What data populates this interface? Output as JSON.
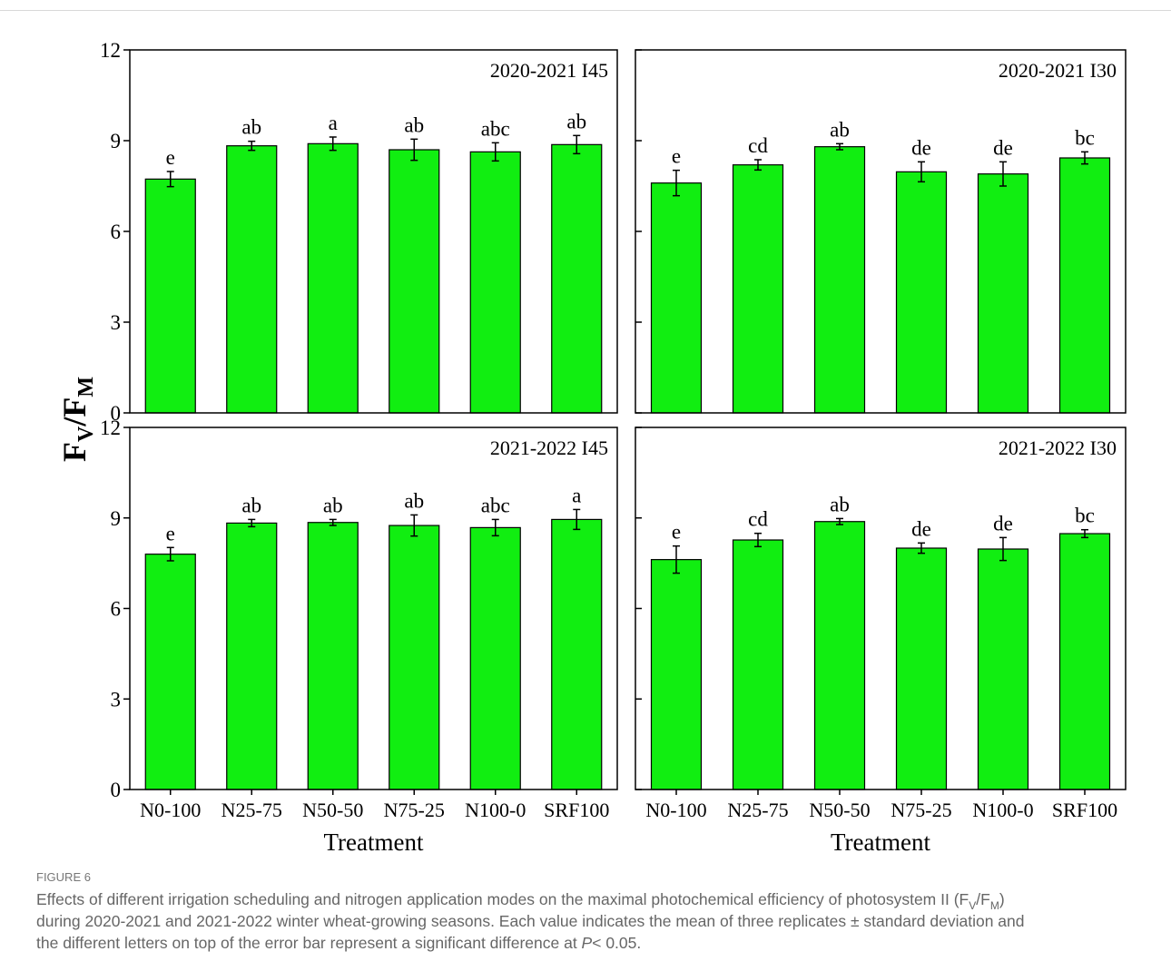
{
  "y_label": [
    "F",
    "V",
    "/F",
    "M"
  ],
  "chart_data": [
    {
      "type": "bar",
      "title": "2020-2021 I45",
      "categories": [
        null,
        null,
        null,
        null,
        null,
        null
      ],
      "values": [
        7.73,
        8.83,
        8.9,
        8.7,
        8.63,
        8.87
      ],
      "errors": [
        0.25,
        0.15,
        0.22,
        0.35,
        0.3,
        0.3
      ],
      "letters": [
        "e",
        "ab",
        "a",
        "ab",
        "abc",
        "ab"
      ],
      "color": "#11ee11",
      "ylim": [
        0,
        12
      ],
      "yticks": [
        0,
        3,
        6,
        9,
        12
      ]
    },
    {
      "type": "bar",
      "title": "2020-2021 I30",
      "categories": [
        null,
        null,
        null,
        null,
        null,
        null
      ],
      "values": [
        7.6,
        8.2,
        8.8,
        7.97,
        7.9,
        8.43
      ],
      "errors": [
        0.42,
        0.17,
        0.1,
        0.33,
        0.4,
        0.2
      ],
      "letters": [
        "e",
        "cd",
        "ab",
        "de",
        "de",
        "bc"
      ],
      "color": "#11ee11",
      "ylim": [
        0,
        12
      ]
    },
    {
      "type": "bar",
      "title": "2021-2022 I45",
      "categories": [
        "N0-100",
        "N25-75",
        "N50-50",
        "N75-25",
        "N100-0",
        "SRF100"
      ],
      "x_label": "Treatment",
      "values": [
        7.8,
        8.83,
        8.85,
        8.75,
        8.68,
        8.95
      ],
      "errors": [
        0.22,
        0.12,
        0.1,
        0.35,
        0.27,
        0.33
      ],
      "letters": [
        "e",
        "ab",
        "ab",
        "ab",
        "abc",
        "a"
      ],
      "color": "#11ee11",
      "ylim": [
        0,
        12
      ],
      "yticks": [
        0,
        3,
        6,
        9,
        12
      ]
    },
    {
      "type": "bar",
      "title": "2021-2022 I30",
      "categories": [
        "N0-100",
        "N25-75",
        "N50-50",
        "N75-25",
        "N100-0",
        "SRF100"
      ],
      "x_label": "Treatment",
      "values": [
        7.62,
        8.27,
        8.88,
        8.0,
        7.97,
        8.48
      ],
      "errors": [
        0.45,
        0.22,
        0.1,
        0.17,
        0.38,
        0.13
      ],
      "letters": [
        "e",
        "cd",
        "ab",
        "de",
        "de",
        "bc"
      ],
      "color": "#11ee11",
      "ylim": [
        0,
        12
      ]
    }
  ],
  "figure_label": "FIGURE 6",
  "caption": [
    [
      {
        "text": "Effects of different irrigation scheduling and nitrogen application modes on the maximal photochemical efficiency of photosystem II (F",
        "style": "normal"
      },
      {
        "text": "V",
        "style": "sub"
      },
      {
        "text": "/F",
        "style": "normal"
      },
      {
        "text": "M",
        "style": "sub"
      },
      {
        "text": ")",
        "style": "normal"
      }
    ],
    [
      {
        "text": "during 2020-2021 and 2021-2022 winter wheat-growing seasons. Each value indicates the mean of three replicates ± standard deviation and",
        "style": "normal"
      }
    ],
    [
      {
        "text": "the different letters on top of the error bar represent a significant difference at ",
        "style": "normal"
      },
      {
        "text": "P",
        "style": "italic"
      },
      {
        "text": "< 0.05.",
        "style": "normal"
      }
    ]
  ]
}
